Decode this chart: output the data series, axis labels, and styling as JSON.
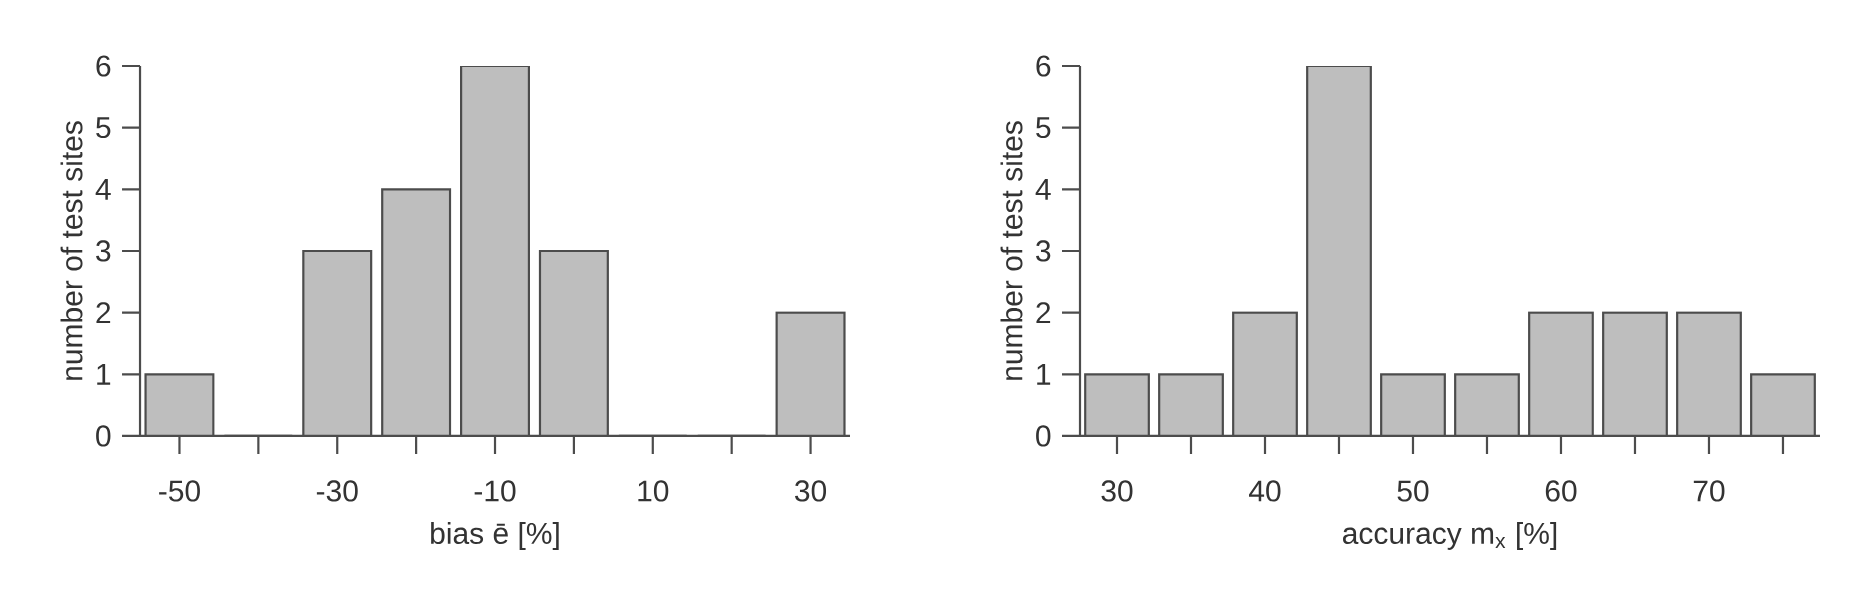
{
  "chart_data": [
    {
      "type": "histogram",
      "xlabel": "bias ē [%]",
      "ylabel": "number of test sites",
      "bins": [
        -55,
        -45,
        -35,
        -25,
        -15,
        -5,
        5,
        15,
        25,
        35
      ],
      "values": [
        1,
        0,
        3,
        4,
        6,
        3,
        0,
        0,
        2
      ],
      "color": "#bebebe",
      "xlim": [
        -55,
        35
      ],
      "ylim": [
        0,
        6
      ],
      "xticks": [
        -50,
        {
          "value": -40,
          "label": null
        },
        -30,
        {
          "value": -20,
          "label": null
        },
        -10,
        {
          "value": 0,
          "label": null
        },
        10,
        {
          "value": 20,
          "label": null
        },
        30
      ],
      "yticks": [
        0,
        1,
        2,
        3,
        4,
        5,
        6
      ],
      "grid": false
    },
    {
      "type": "histogram",
      "xlabel": "accuracy m$_{x}$ [%]",
      "ylabel": "number of test sites",
      "bins": [
        27.5,
        32.5,
        37.5,
        42.5,
        47.5,
        52.5,
        57.5,
        62.5,
        67.5,
        72.5,
        77.5
      ],
      "values": [
        1,
        1,
        2,
        6,
        1,
        1,
        2,
        2,
        2,
        1
      ],
      "color": "#bebebe",
      "xlim": [
        27.5,
        77.5
      ],
      "ylim": [
        0,
        6
      ],
      "xticks": [
        30,
        {
          "value": 35,
          "label": null
        },
        40,
        {
          "value": 45,
          "label": null
        },
        50,
        {
          "value": 55,
          "label": null
        },
        60,
        {
          "value": 65,
          "label": null
        },
        70,
        {
          "value": 75,
          "label": null
        }
      ],
      "yticks": [
        0,
        1,
        2,
        3,
        4,
        5,
        6
      ],
      "grid": false
    }
  ]
}
